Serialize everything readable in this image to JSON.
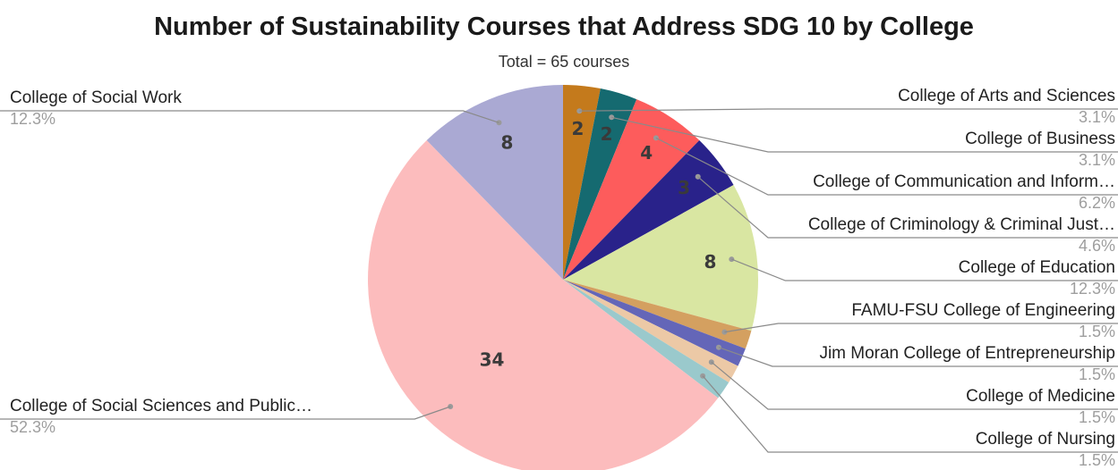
{
  "chart_data": {
    "type": "pie",
    "title": "Number of Sustainability Courses that Address SDG 10 by College",
    "subtitle": "Total = 65 courses",
    "legend": "labels with leader lines",
    "slices": [
      {
        "label": "College of Arts and Sciences",
        "value": 2,
        "percent": "3.1%",
        "color": "#c47a1c"
      },
      {
        "label": "College of Business",
        "value": 2,
        "percent": "3.1%",
        "color": "#156a70"
      },
      {
        "label": "College of Communication and Inform…",
        "value": 4,
        "percent": "6.2%",
        "color": "#fd5c5c"
      },
      {
        "label": "College of Criminology & Criminal Just…",
        "value": 3,
        "percent": "4.6%",
        "color": "#29228a"
      },
      {
        "label": "College of Education",
        "value": 8,
        "percent": "12.3%",
        "color": "#d9e6a2"
      },
      {
        "label": "FAMU-FSU College of Engineering",
        "value": 1,
        "percent": "1.5%",
        "color": "#d4a060"
      },
      {
        "label": "Jim Moran College of Entrepreneurship",
        "value": 1,
        "percent": "1.5%",
        "color": "#6466b8"
      },
      {
        "label": "College of Medicine",
        "value": 1,
        "percent": "1.5%",
        "color": "#ecc9a6"
      },
      {
        "label": "College of Nursing",
        "value": 1,
        "percent": "1.5%",
        "color": "#9ac9cc"
      },
      {
        "label": "College of Social Sciences and Public…",
        "value": 34,
        "percent": "52.3%",
        "color": "#fcbcbd"
      },
      {
        "label": "College of Social Work",
        "value": 8,
        "percent": "12.3%",
        "color": "#aaa9d3"
      }
    ]
  }
}
